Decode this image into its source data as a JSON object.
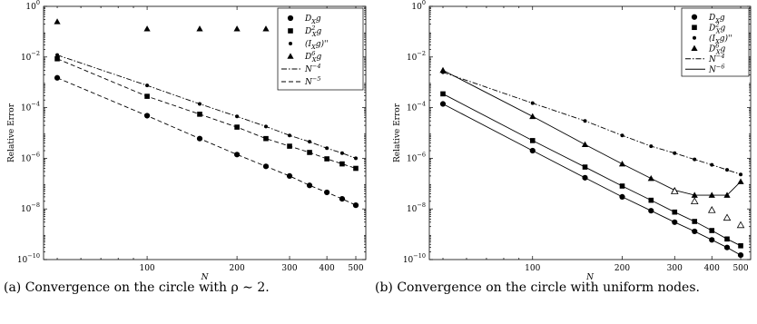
{
  "captions": {
    "a": "(a) Convergence on the circle with ρ ∼ 2.",
    "b": "(b) Convergence on the circle with uniform nodes."
  },
  "chart_data": [
    {
      "type": "scatter",
      "title": "",
      "xlabel": "N",
      "ylabel": "Relative Error",
      "xscale": "log",
      "yscale": "log",
      "xlim": [
        45,
        540
      ],
      "ylim": [
        1e-10,
        1
      ],
      "xticks": [
        100,
        200,
        300,
        400,
        500
      ],
      "yticks": [
        1e-10,
        1e-08,
        1e-06,
        0.0001,
        0.01,
        1
      ],
      "xtick_labels": [
        "100",
        "200",
        "300",
        "400",
        "500"
      ],
      "ytick_labels": [
        "10",
        "10",
        "10",
        "10",
        "10",
        "10"
      ],
      "ytick_exponents": [
        "−10",
        "−8",
        "−6",
        "−4",
        "−2",
        "0"
      ],
      "grid": false,
      "legend_position": "top-right",
      "series": [
        {
          "name": "D_X g",
          "label_main": "D",
          "label_sub": "X",
          "label_sup": "",
          "label_tail": "g",
          "marker": "circle",
          "line": "dashed",
          "x": [
            50,
            100,
            150,
            200,
            250,
            300,
            350,
            400,
            450,
            500
          ],
          "y": [
            0.0015,
            4.8e-05,
            6e-06,
            1.4e-06,
            4.8e-07,
            2e-07,
            8.5e-08,
            4.5e-08,
            2.5e-08,
            1.4e-08
          ]
        },
        {
          "name": "D_X^2 g",
          "label_main": "D",
          "label_sub": "X",
          "label_sup": "2",
          "label_tail": "g",
          "marker": "square",
          "line": "dashed",
          "x": [
            50,
            100,
            150,
            200,
            250,
            300,
            350,
            400,
            450,
            500
          ],
          "y": [
            0.0085,
            0.00028,
            5.5e-05,
            1.7e-05,
            6e-06,
            3e-06,
            1.7e-06,
            9.5e-07,
            6e-07,
            4e-07
          ]
        },
        {
          "name": "(I_X g)''",
          "label_main": "(I",
          "label_sub": "X",
          "label_sup": "",
          "label_tail": "g)''",
          "marker": "dot",
          "line": "dashdot",
          "x": [
            50,
            100,
            150,
            200,
            250,
            300,
            350,
            400,
            450,
            500
          ],
          "y": [
            0.012,
            0.00075,
            0.00014,
            4.5e-05,
            1.8e-05,
            8e-06,
            4.5e-06,
            2.5e-06,
            1.6e-06,
            1e-06
          ]
        },
        {
          "name": "D_X^6 g",
          "label_main": "D",
          "label_sub": "X",
          "label_sup": "6",
          "label_tail": "g",
          "marker": "triangle",
          "line": "none",
          "x": [
            50,
            100,
            150,
            200,
            250,
            300
          ],
          "y": [
            0.25,
            0.13,
            0.13,
            0.13,
            0.13,
            0.13
          ]
        }
      ],
      "reference_lines": [
        {
          "name": "N^-4",
          "label_main": "N",
          "label_sup": "−4",
          "line": "dashdot"
        },
        {
          "name": "N^-5",
          "label_main": "N",
          "label_sup": "−5",
          "line": "dashed"
        }
      ]
    },
    {
      "type": "scatter",
      "title": "",
      "xlabel": "N",
      "ylabel": "Relative Error",
      "xscale": "log",
      "yscale": "log",
      "xlim": [
        45,
        540
      ],
      "ylim": [
        1e-10,
        1
      ],
      "xticks": [
        100,
        200,
        300,
        400,
        500
      ],
      "yticks": [
        1e-10,
        1e-08,
        1e-06,
        0.0001,
        0.01,
        1
      ],
      "xtick_labels": [
        "100",
        "200",
        "300",
        "400",
        "500"
      ],
      "ytick_labels": [
        "10",
        "10",
        "10",
        "10",
        "10",
        "10"
      ],
      "ytick_exponents": [
        "−10",
        "−8",
        "−6",
        "−4",
        "−2",
        "0"
      ],
      "grid": false,
      "legend_position": "top-right",
      "series": [
        {
          "name": "D_X g",
          "label_main": "D",
          "label_sub": "X",
          "label_sup": "",
          "label_tail": "g",
          "marker": "circle",
          "line": "solid",
          "x": [
            50,
            100,
            150,
            200,
            250,
            300,
            350,
            400,
            450,
            500
          ],
          "y": [
            0.00014,
            2e-06,
            1.7e-07,
            3e-08,
            8.5e-09,
            3e-09,
            1.3e-09,
            6e-10,
            3e-10,
            1.5e-10
          ]
        },
        {
          "name": "D_X^2 g",
          "label_main": "D",
          "label_sub": "X",
          "label_sup": "2",
          "label_tail": "g",
          "marker": "square",
          "line": "solid",
          "x": [
            50,
            100,
            150,
            200,
            250,
            300,
            350,
            400,
            450,
            500
          ],
          "y": [
            0.00035,
            5e-06,
            4.5e-07,
            8e-08,
            2.2e-08,
            7.5e-09,
            3.2e-09,
            1.4e-09,
            6.5e-10,
            3.5e-10
          ]
        },
        {
          "name": "(I_X g)''",
          "label_main": "(I",
          "label_sub": "X",
          "label_sup": "",
          "label_tail": "g)''",
          "marker": "dot",
          "line": "dashdot",
          "x": [
            50,
            100,
            150,
            200,
            250,
            300,
            350,
            400,
            450,
            500
          ],
          "y": [
            0.0025,
            0.00015,
            3e-05,
            8e-06,
            3e-06,
            1.6e-06,
            9e-07,
            5.5e-07,
            3.5e-07,
            2.3e-07
          ]
        },
        {
          "name": "D_X^6 g",
          "label_main": "D",
          "label_sub": "X",
          "label_sup": "6",
          "label_tail": "g",
          "marker": "triangle",
          "line": "solid",
          "x": [
            50,
            100,
            150,
            200,
            250,
            300,
            350,
            400,
            450,
            500
          ],
          "y": [
            0.003,
            4.5e-05,
            3.5e-06,
            6e-07,
            1.6e-07,
            5.5e-08,
            3.5e-08,
            3.5e-08,
            3.5e-08,
            1.2e-07
          ]
        },
        {
          "name": "D_X^6 g (open)",
          "label_main": "",
          "label_sub": "",
          "label_sup": "",
          "label_tail": "",
          "marker": "triangle-open",
          "line": "none",
          "x": [
            300,
            350,
            400,
            450,
            500
          ],
          "y": [
            5e-08,
            2e-08,
            9e-09,
            4.5e-09,
            2.3e-09
          ]
        }
      ],
      "reference_lines": [
        {
          "name": "N^-4",
          "label_main": "N",
          "label_sup": "−4",
          "line": "dashdot"
        },
        {
          "name": "N^-6",
          "label_main": "N",
          "label_sup": "−6",
          "line": "solid"
        }
      ]
    }
  ]
}
